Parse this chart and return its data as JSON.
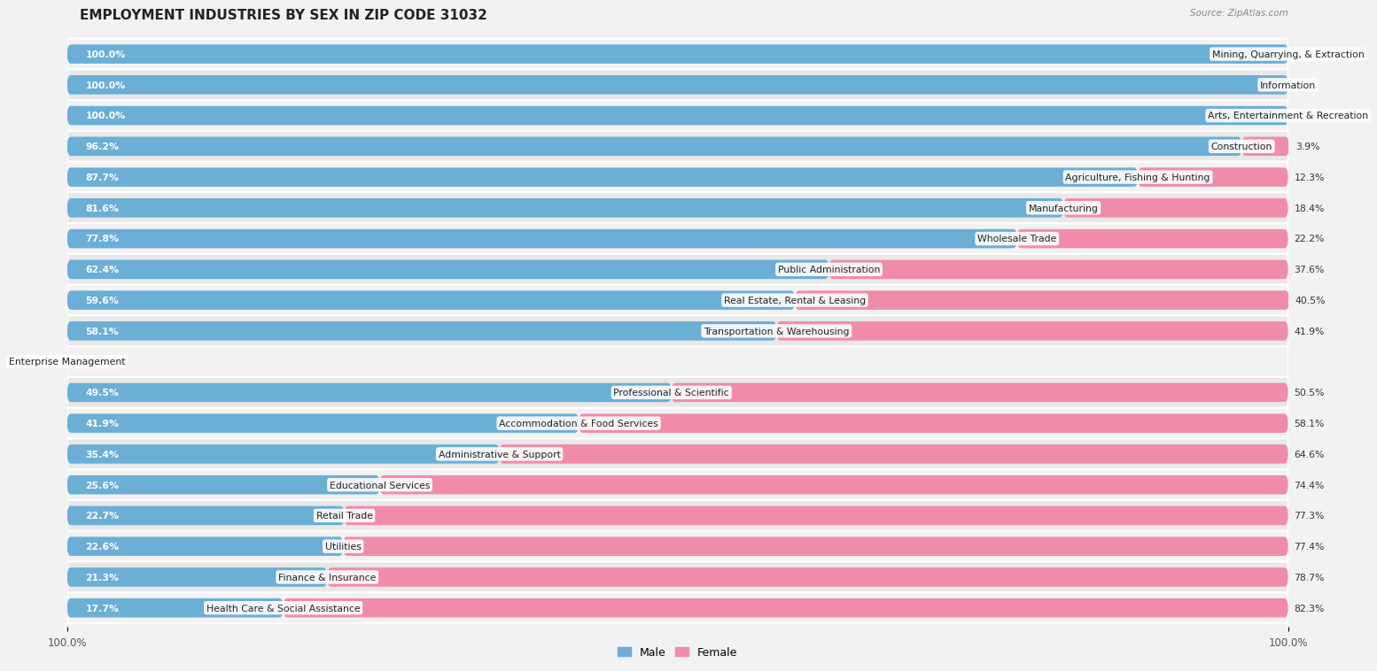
{
  "title": "EMPLOYMENT INDUSTRIES BY SEX IN ZIP CODE 31032",
  "source": "Source: ZipAtlas.com",
  "categories": [
    "Mining, Quarrying, & Extraction",
    "Information",
    "Arts, Entertainment & Recreation",
    "Construction",
    "Agriculture, Fishing & Hunting",
    "Manufacturing",
    "Wholesale Trade",
    "Public Administration",
    "Real Estate, Rental & Leasing",
    "Transportation & Warehousing",
    "Enterprise Management",
    "Professional & Scientific",
    "Accommodation & Food Services",
    "Administrative & Support",
    "Educational Services",
    "Retail Trade",
    "Utilities",
    "Finance & Insurance",
    "Health Care & Social Assistance"
  ],
  "male": [
    100.0,
    100.0,
    100.0,
    96.2,
    87.7,
    81.6,
    77.8,
    62.4,
    59.6,
    58.1,
    0.0,
    49.5,
    41.9,
    35.4,
    25.6,
    22.7,
    22.6,
    21.3,
    17.7
  ],
  "female": [
    0.0,
    0.0,
    0.0,
    3.9,
    12.3,
    18.4,
    22.2,
    37.6,
    40.5,
    41.9,
    0.0,
    50.5,
    58.1,
    64.6,
    74.4,
    77.3,
    77.4,
    78.7,
    82.3
  ],
  "male_color": "#6baed6",
  "female_color": "#f08caa",
  "bar_height": 0.62,
  "background_color": "#f2f2f2",
  "row_alt_color": "#e8e8e8",
  "row_base_color": "#f2f2f2",
  "title_fontsize": 11,
  "label_fontsize": 7.8,
  "value_fontsize": 7.8,
  "legend_fontsize": 9
}
